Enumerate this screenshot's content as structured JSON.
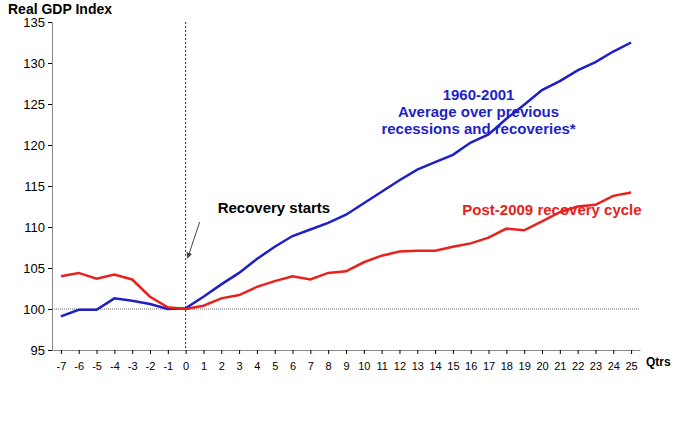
{
  "chart_data": {
    "type": "line",
    "y_label": "Real GDP Index",
    "x_label": "Qtrs",
    "x": [
      -7,
      -6,
      -5,
      -4,
      -3,
      -2,
      -1,
      0,
      1,
      2,
      3,
      4,
      5,
      6,
      7,
      8,
      9,
      10,
      11,
      12,
      13,
      14,
      15,
      16,
      17,
      18,
      19,
      20,
      21,
      22,
      23,
      24,
      25
    ],
    "series": [
      {
        "name": "1960-2001\nAverage over previous\nrecessions and recoveries*",
        "color": "#1f1fc8",
        "values": [
          99.1,
          99.9,
          99.9,
          101.3,
          101.0,
          100.6,
          100.0,
          100.1,
          101.5,
          103.0,
          104.4,
          106.1,
          107.6,
          108.9,
          109.7,
          110.5,
          111.5,
          112.9,
          114.3,
          115.7,
          117.0,
          117.9,
          118.8,
          120.3,
          121.3,
          123.2,
          124.9,
          126.7,
          127.8,
          129.1,
          130.1,
          131.4,
          132.5
        ]
      },
      {
        "name": "Post-2009 recovery cycle",
        "color": "#e8211c",
        "values": [
          104.0,
          104.4,
          103.7,
          104.2,
          103.6,
          101.5,
          100.2,
          100.0,
          100.4,
          101.3,
          101.7,
          102.7,
          103.4,
          104.0,
          103.6,
          104.4,
          104.6,
          105.7,
          106.5,
          107.0,
          107.1,
          107.1,
          107.6,
          108.0,
          108.7,
          109.8,
          109.6,
          110.7,
          111.8,
          112.5,
          112.7,
          113.8,
          114.2
        ]
      }
    ],
    "annotations": [
      {
        "text": "Recovery starts"
      }
    ],
    "vline": 0,
    "hline": 100,
    "xlim": [
      -7.5,
      25.5
    ],
    "xticks": [
      -7,
      -6,
      -5,
      -4,
      -3,
      -2,
      -1,
      0,
      1,
      2,
      3,
      4,
      5,
      6,
      7,
      8,
      9,
      10,
      11,
      12,
      13,
      14,
      15,
      16,
      17,
      18,
      19,
      20,
      21,
      22,
      23,
      24,
      25
    ],
    "ylim": [
      95,
      135
    ],
    "yticks": [
      95,
      100,
      105,
      110,
      115,
      120,
      125,
      130,
      135
    ],
    "grid": false
  }
}
